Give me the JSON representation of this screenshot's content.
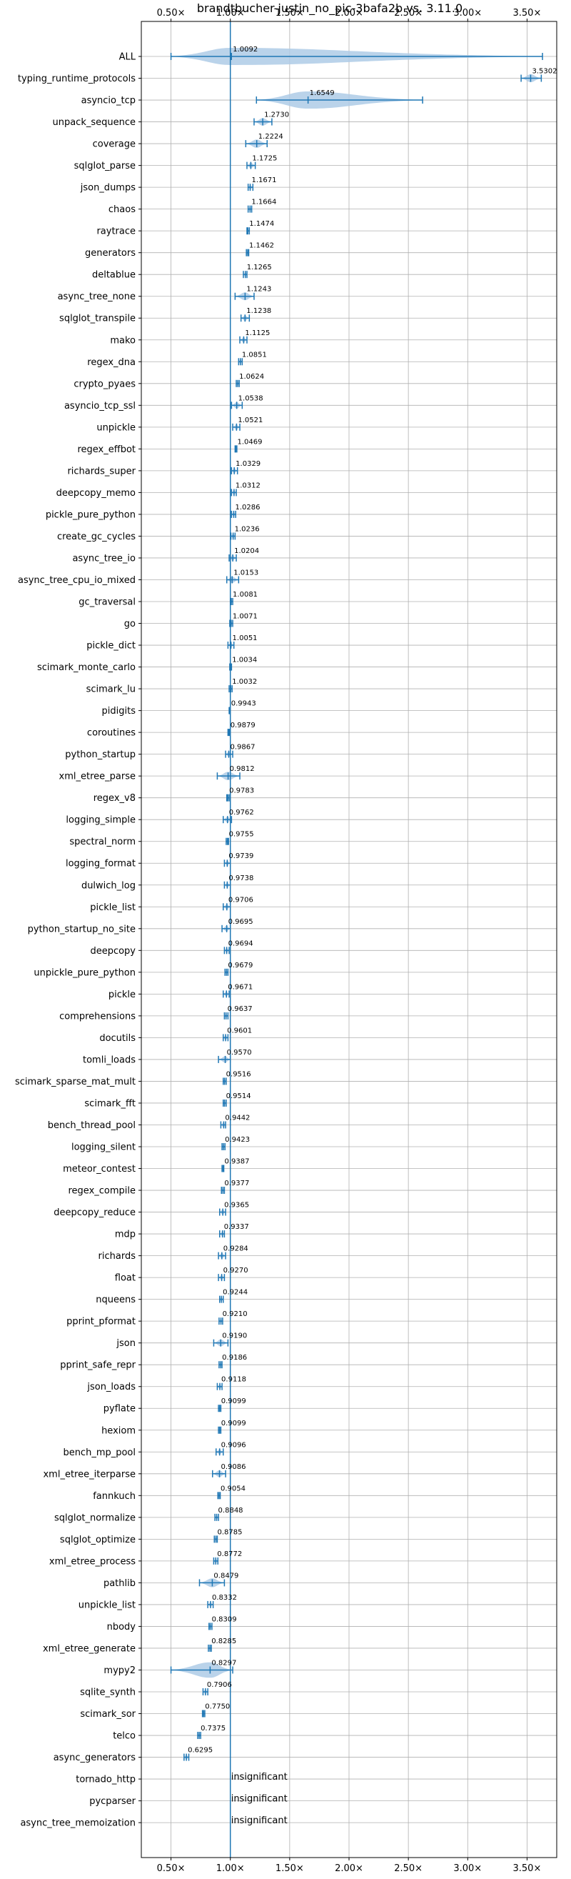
{
  "colors": {
    "primary": "#1f77b4",
    "violin": "#aecbe6",
    "grid": "#b0b0b0",
    "axis": "#000000"
  },
  "chart_data": {
    "type": "violin",
    "title": "brandtbucher-justin_no_pic-3bafa2b vs. 3.11.0",
    "xlabel": "",
    "ylabel": "",
    "xlim": [
      0.25,
      3.75
    ],
    "xticks": [
      0.5,
      1.0,
      1.5,
      2.0,
      2.5,
      3.0,
      3.5
    ],
    "xtick_labels": [
      "0.50×",
      "1.00×",
      "1.50×",
      "2.00×",
      "2.50×",
      "3.00×",
      "3.50×"
    ],
    "reference_line": 1.0,
    "grid": true,
    "benchmarks": [
      {
        "name": "ALL",
        "value": 1.0092,
        "label": "1.0092",
        "min": 0.5,
        "max": 3.63
      },
      {
        "name": "typing_runtime_protocols",
        "value": 3.5302,
        "label": "3.5302",
        "min": 3.45,
        "max": 3.62
      },
      {
        "name": "asyncio_tcp",
        "value": 1.6549,
        "label": "1.6549",
        "min": 1.22,
        "max": 2.62
      },
      {
        "name": "unpack_sequence",
        "value": 1.273,
        "label": "1.2730",
        "min": 1.2,
        "max": 1.35
      },
      {
        "name": "coverage",
        "value": 1.2224,
        "label": "1.2224",
        "min": 1.13,
        "max": 1.31
      },
      {
        "name": "sqlglot_parse",
        "value": 1.1725,
        "label": "1.1725",
        "min": 1.14,
        "max": 1.21
      },
      {
        "name": "json_dumps",
        "value": 1.1671,
        "label": "1.1671",
        "min": 1.15,
        "max": 1.19
      },
      {
        "name": "chaos",
        "value": 1.1664,
        "label": "1.1664",
        "min": 1.15,
        "max": 1.18
      },
      {
        "name": "raytrace",
        "value": 1.1474,
        "label": "1.1474",
        "min": 1.14,
        "max": 1.16
      },
      {
        "name": "generators",
        "value": 1.1462,
        "label": "1.1462",
        "min": 1.135,
        "max": 1.155
      },
      {
        "name": "deltablue",
        "value": 1.1265,
        "label": "1.1265",
        "min": 1.11,
        "max": 1.14
      },
      {
        "name": "async_tree_none",
        "value": 1.1243,
        "label": "1.1243",
        "min": 1.04,
        "max": 1.2
      },
      {
        "name": "sqlglot_transpile",
        "value": 1.1238,
        "label": "1.1238",
        "min": 1.09,
        "max": 1.16
      },
      {
        "name": "mako",
        "value": 1.1125,
        "label": "1.1125",
        "min": 1.08,
        "max": 1.14
      },
      {
        "name": "regex_dna",
        "value": 1.0851,
        "label": "1.0851",
        "min": 1.07,
        "max": 1.1
      },
      {
        "name": "crypto_pyaes",
        "value": 1.0624,
        "label": "1.0624",
        "min": 1.05,
        "max": 1.075
      },
      {
        "name": "asyncio_tcp_ssl",
        "value": 1.0538,
        "label": "1.0538",
        "min": 1.01,
        "max": 1.1
      },
      {
        "name": "unpickle",
        "value": 1.0521,
        "label": "1.0521",
        "min": 1.02,
        "max": 1.08
      },
      {
        "name": "regex_effbot",
        "value": 1.0469,
        "label": "1.0469",
        "min": 1.04,
        "max": 1.055
      },
      {
        "name": "richards_super",
        "value": 1.0329,
        "label": "1.0329",
        "min": 1.01,
        "max": 1.06
      },
      {
        "name": "deepcopy_memo",
        "value": 1.0312,
        "label": "1.0312",
        "min": 1.01,
        "max": 1.05
      },
      {
        "name": "pickle_pure_python",
        "value": 1.0286,
        "label": "1.0286",
        "min": 1.01,
        "max": 1.045
      },
      {
        "name": "create_gc_cycles",
        "value": 1.0236,
        "label": "1.0236",
        "min": 1.005,
        "max": 1.04
      },
      {
        "name": "async_tree_io",
        "value": 1.0204,
        "label": "1.0204",
        "min": 0.99,
        "max": 1.05
      },
      {
        "name": "async_tree_cpu_io_mixed",
        "value": 1.0153,
        "label": "1.0153",
        "min": 0.97,
        "max": 1.07
      },
      {
        "name": "gc_traversal",
        "value": 1.0081,
        "label": "1.0081",
        "min": 1.0,
        "max": 1.02
      },
      {
        "name": "go",
        "value": 1.0071,
        "label": "1.0071",
        "min": 0.995,
        "max": 1.02
      },
      {
        "name": "pickle_dict",
        "value": 1.0051,
        "label": "1.0051",
        "min": 0.98,
        "max": 1.03
      },
      {
        "name": "scimark_monte_carlo",
        "value": 1.0034,
        "label": "1.0034",
        "min": 0.995,
        "max": 1.01
      },
      {
        "name": "scimark_lu",
        "value": 1.0032,
        "label": "1.0032",
        "min": 0.99,
        "max": 1.015
      },
      {
        "name": "pidigits",
        "value": 0.9943,
        "label": "0.9943",
        "min": 0.99,
        "max": 1.0
      },
      {
        "name": "coroutines",
        "value": 0.9879,
        "label": "0.9879",
        "min": 0.98,
        "max": 0.995
      },
      {
        "name": "python_startup",
        "value": 0.9867,
        "label": "0.9867",
        "min": 0.96,
        "max": 1.02
      },
      {
        "name": "xml_etree_parse",
        "value": 0.9812,
        "label": "0.9812",
        "min": 0.89,
        "max": 1.08
      },
      {
        "name": "regex_v8",
        "value": 0.9783,
        "label": "0.9783",
        "min": 0.97,
        "max": 0.99
      },
      {
        "name": "logging_simple",
        "value": 0.9762,
        "label": "0.9762",
        "min": 0.94,
        "max": 1.01
      },
      {
        "name": "spectral_norm",
        "value": 0.9755,
        "label": "0.9755",
        "min": 0.965,
        "max": 0.985
      },
      {
        "name": "logging_format",
        "value": 0.9739,
        "label": "0.9739",
        "min": 0.95,
        "max": 1.0
      },
      {
        "name": "dulwich_log",
        "value": 0.9738,
        "label": "0.9738",
        "min": 0.95,
        "max": 1.0
      },
      {
        "name": "pickle_list",
        "value": 0.9706,
        "label": "0.9706",
        "min": 0.94,
        "max": 1.0
      },
      {
        "name": "python_startup_no_site",
        "value": 0.9695,
        "label": "0.9695",
        "min": 0.93,
        "max": 1.0
      },
      {
        "name": "deepcopy",
        "value": 0.9694,
        "label": "0.9694",
        "min": 0.95,
        "max": 0.99
      },
      {
        "name": "unpickle_pure_python",
        "value": 0.9679,
        "label": "0.9679",
        "min": 0.955,
        "max": 0.98
      },
      {
        "name": "pickle",
        "value": 0.9671,
        "label": "0.9671",
        "min": 0.94,
        "max": 0.99
      },
      {
        "name": "comprehensions",
        "value": 0.9637,
        "label": "0.9637",
        "min": 0.95,
        "max": 0.98
      },
      {
        "name": "docutils",
        "value": 0.9601,
        "label": "0.9601",
        "min": 0.94,
        "max": 0.98
      },
      {
        "name": "tomli_loads",
        "value": 0.957,
        "label": "0.9570",
        "min": 0.9,
        "max": 1.0
      },
      {
        "name": "scimark_sparse_mat_mult",
        "value": 0.9516,
        "label": "0.9516",
        "min": 0.94,
        "max": 0.965
      },
      {
        "name": "scimark_fft",
        "value": 0.9514,
        "label": "0.9514",
        "min": 0.94,
        "max": 0.965
      },
      {
        "name": "bench_thread_pool",
        "value": 0.9442,
        "label": "0.9442",
        "min": 0.92,
        "max": 0.96
      },
      {
        "name": "logging_silent",
        "value": 0.9423,
        "label": "0.9423",
        "min": 0.93,
        "max": 0.955
      },
      {
        "name": "meteor_contest",
        "value": 0.9387,
        "label": "0.9387",
        "min": 0.93,
        "max": 0.945
      },
      {
        "name": "regex_compile",
        "value": 0.9377,
        "label": "0.9377",
        "min": 0.925,
        "max": 0.95
      },
      {
        "name": "deepcopy_reduce",
        "value": 0.9365,
        "label": "0.9365",
        "min": 0.91,
        "max": 0.96
      },
      {
        "name": "mdp",
        "value": 0.9337,
        "label": "0.9337",
        "min": 0.91,
        "max": 0.95
      },
      {
        "name": "richards",
        "value": 0.9284,
        "label": "0.9284",
        "min": 0.9,
        "max": 0.96
      },
      {
        "name": "float",
        "value": 0.927,
        "label": "0.9270",
        "min": 0.9,
        "max": 0.95
      },
      {
        "name": "nqueens",
        "value": 0.9244,
        "label": "0.9244",
        "min": 0.91,
        "max": 0.94
      },
      {
        "name": "pprint_pformat",
        "value": 0.921,
        "label": "0.9210",
        "min": 0.905,
        "max": 0.935
      },
      {
        "name": "json",
        "value": 0.919,
        "label": "0.9190",
        "min": 0.86,
        "max": 0.98
      },
      {
        "name": "pprint_safe_repr",
        "value": 0.9186,
        "label": "0.9186",
        "min": 0.905,
        "max": 0.93
      },
      {
        "name": "json_loads",
        "value": 0.9118,
        "label": "0.9118",
        "min": 0.89,
        "max": 0.93
      },
      {
        "name": "pyflate",
        "value": 0.9099,
        "label": "0.9099",
        "min": 0.9,
        "max": 0.92
      },
      {
        "name": "hexiom",
        "value": 0.9099,
        "label": "0.9099",
        "min": 0.9,
        "max": 0.92
      },
      {
        "name": "bench_mp_pool",
        "value": 0.9096,
        "label": "0.9096",
        "min": 0.88,
        "max": 0.94
      },
      {
        "name": "xml_etree_iterparse",
        "value": 0.9086,
        "label": "0.9086",
        "min": 0.85,
        "max": 0.96
      },
      {
        "name": "fannkuch",
        "value": 0.9054,
        "label": "0.9054",
        "min": 0.895,
        "max": 0.915
      },
      {
        "name": "sqlglot_normalize",
        "value": 0.8848,
        "label": "0.8848",
        "min": 0.87,
        "max": 0.9
      },
      {
        "name": "sqlglot_optimize",
        "value": 0.8785,
        "label": "0.8785",
        "min": 0.865,
        "max": 0.89
      },
      {
        "name": "xml_etree_process",
        "value": 0.8772,
        "label": "0.8772",
        "min": 0.86,
        "max": 0.895
      },
      {
        "name": "pathlib",
        "value": 0.8479,
        "label": "0.8479",
        "min": 0.74,
        "max": 0.95
      },
      {
        "name": "unpickle_list",
        "value": 0.8332,
        "label": "0.8332",
        "min": 0.81,
        "max": 0.855
      },
      {
        "name": "nbody",
        "value": 0.8309,
        "label": "0.8309",
        "min": 0.82,
        "max": 0.845
      },
      {
        "name": "xml_etree_generate",
        "value": 0.8285,
        "label": "0.8285",
        "min": 0.815,
        "max": 0.84
      },
      {
        "name": "mypy2",
        "value": 0.8297,
        "label": "0.8297",
        "min": 0.5,
        "max": 1.02
      },
      {
        "name": "sqlite_synth",
        "value": 0.7906,
        "label": "0.7906",
        "min": 0.77,
        "max": 0.81
      },
      {
        "name": "scimark_sor",
        "value": 0.775,
        "label": "0.7750",
        "min": 0.765,
        "max": 0.785
      },
      {
        "name": "telco",
        "value": 0.7375,
        "label": "0.7375",
        "min": 0.725,
        "max": 0.75
      },
      {
        "name": "async_generators",
        "value": 0.6295,
        "label": "0.6295",
        "min": 0.61,
        "max": 0.65
      },
      {
        "name": "tornado_http",
        "value": null,
        "label": "insignificant"
      },
      {
        "name": "pycparser",
        "value": null,
        "label": "insignificant"
      },
      {
        "name": "async_tree_memoization",
        "value": null,
        "label": "insignificant"
      }
    ]
  }
}
